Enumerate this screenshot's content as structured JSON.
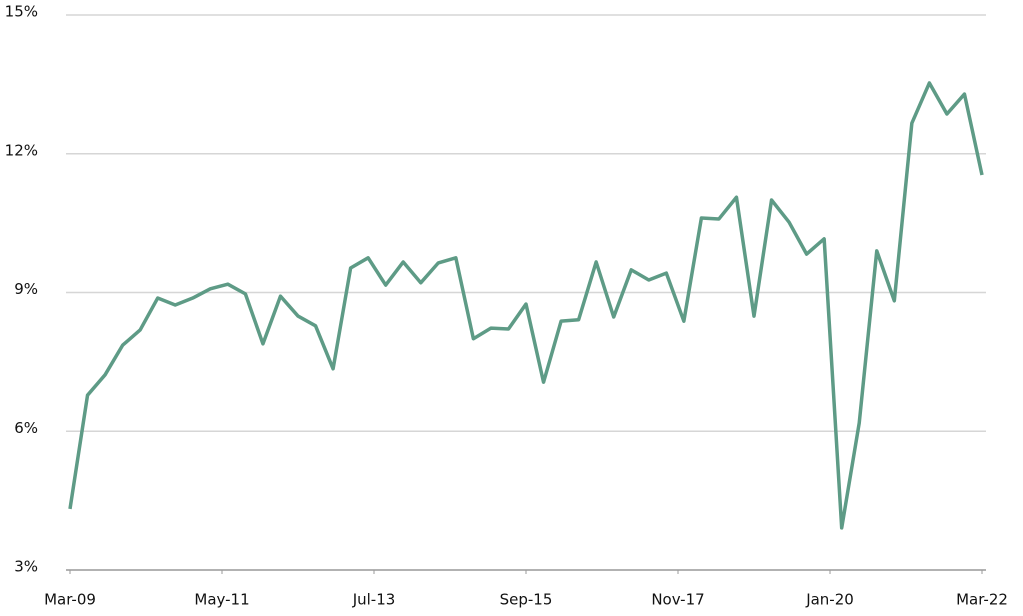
{
  "chart_data": {
    "type": "line",
    "x": [
      "2009-03",
      "2009-06",
      "2009-09",
      "2009-12",
      "2010-03",
      "2010-06",
      "2010-09",
      "2010-12",
      "2011-03",
      "2011-06",
      "2011-09",
      "2011-12",
      "2012-03",
      "2012-06",
      "2012-09",
      "2012-12",
      "2013-03",
      "2013-06",
      "2013-09",
      "2013-12",
      "2014-03",
      "2014-06",
      "2014-09",
      "2014-12",
      "2015-03",
      "2015-06",
      "2015-09",
      "2015-12",
      "2016-03",
      "2016-06",
      "2016-09",
      "2016-12",
      "2017-03",
      "2017-06",
      "2017-09",
      "2017-12",
      "2018-03",
      "2018-06",
      "2018-09",
      "2018-12",
      "2019-03",
      "2019-06",
      "2019-09",
      "2019-12",
      "2020-03",
      "2020-06",
      "2020-09",
      "2020-12",
      "2021-03",
      "2021-06",
      "2021-09",
      "2021-12",
      "2022-03"
    ],
    "series": [
      {
        "color": "#5e9b86",
        "values": [
          4.32,
          6.78,
          7.22,
          7.86,
          8.19,
          8.88,
          8.73,
          8.88,
          9.08,
          9.18,
          8.97,
          7.89,
          8.92,
          8.49,
          8.28,
          7.35,
          9.53,
          9.75,
          9.16,
          9.66,
          9.21,
          9.64,
          9.75,
          8.0,
          8.23,
          8.21,
          8.75,
          7.06,
          8.38,
          8.41,
          9.66,
          8.47,
          9.49,
          9.27,
          9.42,
          8.38,
          10.61,
          10.59,
          11.06,
          8.49,
          11.0,
          10.52,
          9.83,
          10.16,
          3.91,
          6.18,
          9.9,
          8.82,
          12.66,
          13.53,
          12.86,
          13.29,
          11.54
        ]
      }
    ],
    "xlim": [
      "2009-03",
      "2022-03"
    ],
    "xticks": [
      {
        "value": "2009-03",
        "label": "Mar-09"
      },
      {
        "value": "2011-05",
        "label": "May-11"
      },
      {
        "value": "2013-07",
        "label": "Jul-13"
      },
      {
        "value": "2015-09",
        "label": "Sep-15"
      },
      {
        "value": "2017-11",
        "label": "Nov-17"
      },
      {
        "value": "2020-01",
        "label": "Jan-20"
      },
      {
        "value": "2022-03",
        "label": "Mar-22"
      }
    ],
    "ylim": [
      3,
      15
    ],
    "yticks": [
      {
        "value": 3,
        "label": "3%"
      },
      {
        "value": 6,
        "label": "6%"
      },
      {
        "value": 9,
        "label": "9%"
      },
      {
        "value": 12,
        "label": "12%"
      },
      {
        "value": 15,
        "label": "15%"
      }
    ],
    "grid": true
  }
}
